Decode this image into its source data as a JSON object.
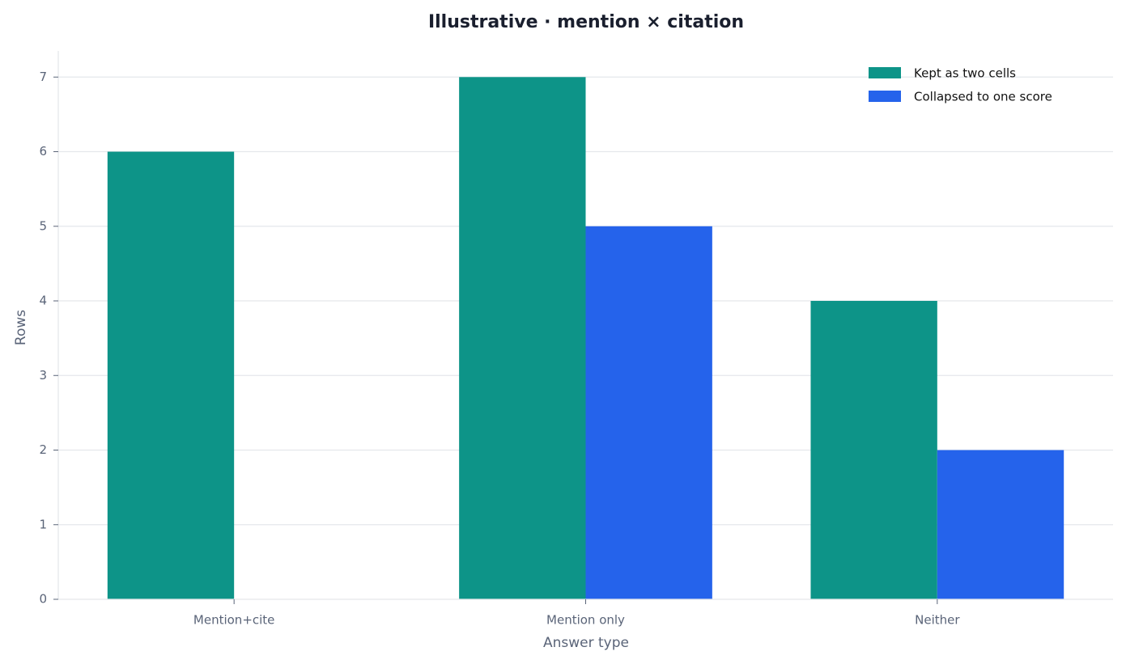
{
  "chart_data": {
    "type": "bar",
    "title": "Illustrative · mention × citation",
    "x_label": "Answer type",
    "y_label": "Rows",
    "categories": [
      "Mention+cite",
      "Mention only",
      "Neither"
    ],
    "series": [
      {
        "name": "Kept as two cells",
        "color": "#0d9488",
        "values": [
          6,
          7,
          4
        ]
      },
      {
        "name": "Collapsed to one score",
        "color": "#2563eb",
        "values": [
          0,
          5,
          2
        ]
      }
    ],
    "ylim": [
      0,
      7.35
    ],
    "yticks": [
      0,
      1,
      2,
      3,
      4,
      5,
      6,
      7
    ],
    "grid": true,
    "legend": "upper right"
  }
}
